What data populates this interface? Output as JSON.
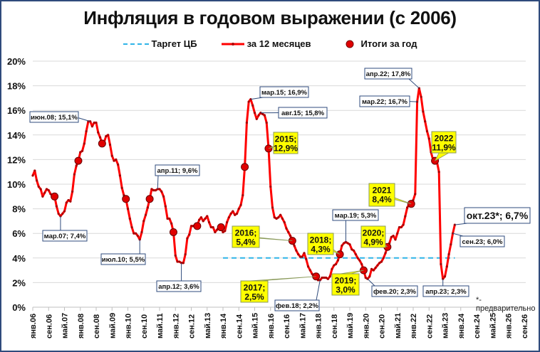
{
  "title": "Инфляция в годовом выражении (с 2006)",
  "legend": {
    "target": "Таргет ЦБ",
    "monthly": "за 12 месяцев",
    "annual": "Итоги за год"
  },
  "note": "*-предварительно",
  "colors": {
    "line": "#ff0000",
    "dot": "#e00000",
    "target": "#2fb4e8",
    "grid": "#d9d9d9",
    "frame": "#2f4b7c",
    "callout_yellow": "#ffff00",
    "callout_border": "#2f4b7c"
  },
  "chart_data": {
    "type": "line",
    "title": "Инфляция в годовом выражении (с 2006)",
    "xlabel": "",
    "ylabel": "",
    "ylim": [
      0,
      20
    ],
    "yticks": [
      "0%",
      "2%",
      "4%",
      "6%",
      "8%",
      "10%",
      "12%",
      "14%",
      "16%",
      "18%",
      "20%"
    ],
    "xticks": [
      "янв.06",
      "сен.06",
      "май.07",
      "янв.08",
      "сен.08",
      "май.09",
      "янв.10",
      "сен.10",
      "май.11",
      "янв.12",
      "сен.12",
      "май.13",
      "янв.14",
      "сен.14",
      "май.15",
      "янв.16",
      "сен.16",
      "май.17",
      "янв.18",
      "сен.18",
      "май.19",
      "янв.20",
      "сен.20",
      "май.21",
      "янв.22",
      "сен.22",
      "май.23",
      "янв.24",
      "сен.24",
      "май.25",
      "янв.26",
      "сен.26"
    ],
    "grid": true,
    "legend_position": "top",
    "series": [
      {
        "name": "Таргет ЦБ",
        "style": "dashed",
        "start": "янв.14",
        "end": "окт.23",
        "value": 4.0
      },
      {
        "name": "за 12 месяцев",
        "start": "янв.06",
        "values": [
          10.7,
          11.1,
          10.3,
          9.8,
          9.6,
          9.0,
          9.3,
          9.6,
          9.5,
          9.2,
          9.1,
          9.0,
          8.2,
          7.6,
          7.4,
          7.6,
          7.8,
          8.5,
          8.7,
          8.6,
          9.4,
          10.8,
          11.5,
          11.9,
          12.6,
          12.7,
          13.3,
          14.3,
          15.1,
          15.1,
          14.7,
          15.0,
          15.0,
          14.2,
          13.8,
          13.3,
          13.4,
          13.9,
          14.0,
          13.2,
          12.3,
          11.9,
          12.0,
          11.6,
          10.7,
          9.7,
          9.1,
          8.8,
          8.0,
          7.2,
          6.5,
          6.0,
          6.0,
          5.8,
          5.5,
          6.1,
          7.0,
          7.5,
          8.1,
          8.8,
          9.6,
          9.5,
          9.5,
          9.6,
          9.6,
          9.4,
          9.0,
          8.2,
          7.2,
          7.2,
          6.8,
          6.1,
          4.2,
          3.7,
          3.7,
          3.6,
          3.6,
          4.3,
          5.6,
          5.9,
          6.6,
          6.6,
          6.5,
          6.6,
          7.1,
          7.3,
          7.0,
          7.2,
          7.4,
          6.9,
          6.5,
          6.5,
          6.1,
          6.3,
          6.5,
          6.5,
          6.1,
          6.2,
          6.9,
          7.3,
          7.6,
          7.8,
          7.5,
          7.6,
          8.0,
          8.3,
          9.1,
          11.4,
          15.0,
          16.7,
          16.9,
          16.4,
          15.8,
          15.3,
          15.6,
          15.8,
          15.7,
          15.6,
          15.0,
          12.9,
          9.8,
          8.1,
          7.3,
          7.2,
          7.3,
          7.5,
          7.2,
          6.9,
          6.4,
          6.1,
          5.8,
          5.4,
          5.0,
          4.6,
          4.3,
          4.1,
          4.1,
          4.4,
          3.9,
          3.3,
          3.0,
          2.7,
          2.5,
          2.5,
          2.2,
          2.2,
          2.4,
          2.4,
          2.4,
          2.3,
          2.5,
          3.1,
          3.4,
          3.5,
          3.8,
          4.3,
          5.0,
          5.2,
          5.3,
          5.2,
          5.1,
          4.7,
          4.6,
          4.3,
          4.0,
          3.8,
          3.5,
          3.0,
          2.4,
          2.3,
          2.5,
          3.1,
          3.0,
          3.2,
          3.4,
          3.6,
          3.7,
          4.0,
          4.4,
          4.9,
          5.2,
          5.7,
          5.8,
          5.5,
          6.0,
          6.5,
          6.5,
          6.7,
          7.4,
          8.1,
          8.4,
          8.4,
          8.7,
          9.2,
          16.7,
          17.8,
          17.1,
          15.9,
          15.1,
          14.3,
          13.7,
          12.6,
          12.0,
          11.9,
          11.8,
          11.0,
          3.5,
          2.3,
          2.5,
          3.3,
          4.3,
          5.1,
          6.0,
          6.7
        ]
      },
      {
        "name": "Итоги за год",
        "type": "scatter",
        "points": [
          {
            "year": 2006,
            "month": "дек.06",
            "value": 9.0
          },
          {
            "year": 2007,
            "month": "дек.07",
            "value": 11.9
          },
          {
            "year": 2008,
            "month": "дек.08",
            "value": 13.3
          },
          {
            "year": 2009,
            "month": "дек.09",
            "value": 8.8
          },
          {
            "year": 2010,
            "month": "дек.10",
            "value": 8.8
          },
          {
            "year": 2011,
            "month": "дек.11",
            "value": 6.1
          },
          {
            "year": 2012,
            "month": "дек.12",
            "value": 6.6
          },
          {
            "year": 2013,
            "month": "дек.13",
            "value": 6.5
          },
          {
            "year": 2014,
            "month": "дек.14",
            "value": 11.4
          },
          {
            "year": 2015,
            "month": "дек.15",
            "value": 12.9
          },
          {
            "year": 2016,
            "month": "дек.16",
            "value": 5.4
          },
          {
            "year": 2017,
            "month": "дек.17",
            "value": 2.5
          },
          {
            "year": 2018,
            "month": "дек.18",
            "value": 4.3
          },
          {
            "year": 2019,
            "month": "дек.19",
            "value": 3.0
          },
          {
            "year": 2020,
            "month": "дек.20",
            "value": 4.9
          },
          {
            "year": 2021,
            "month": "дек.21",
            "value": 8.4
          },
          {
            "year": 2022,
            "month": "дек.22",
            "value": 11.9
          }
        ]
      }
    ],
    "annotations": [
      {
        "text": "июн.08; 15,1%",
        "style": "white"
      },
      {
        "text": "мар.07; 7,4%",
        "style": "white"
      },
      {
        "text": "июл.10; 5,5%",
        "style": "white"
      },
      {
        "text": "апр.11; 9,6%",
        "style": "white"
      },
      {
        "text": "апр.12; 3,6%",
        "style": "white"
      },
      {
        "text": "мар.15; 16,9%",
        "style": "white"
      },
      {
        "text": "авг.15; 15,8%",
        "style": "white"
      },
      {
        "text": "фев.18; 2,2%",
        "style": "white"
      },
      {
        "text": "мар.19; 5,3%",
        "style": "white"
      },
      {
        "text": "фев.20; 2,3%",
        "style": "white"
      },
      {
        "text": "апр.22; 17,8%",
        "style": "white"
      },
      {
        "text": "мар.22; 16,7%",
        "style": "white"
      },
      {
        "text": "апр.23; 2,3%",
        "style": "white"
      },
      {
        "text": "сен.23; 6,0%",
        "style": "white"
      },
      {
        "text": "окт.23*; 6,7%",
        "style": "white-large"
      },
      {
        "text": [
          "2015;",
          "12,9%"
        ],
        "style": "yellow"
      },
      {
        "text": [
          "2016;",
          "5,4%"
        ],
        "style": "yellow"
      },
      {
        "text": [
          "2017;",
          "2,5%"
        ],
        "style": "yellow"
      },
      {
        "text": [
          "2018;",
          "4,3%"
        ],
        "style": "yellow"
      },
      {
        "text": [
          "2019;",
          "3,0%"
        ],
        "style": "yellow"
      },
      {
        "text": [
          "2020;",
          "4,9%"
        ],
        "style": "yellow"
      },
      {
        "text": [
          "2021",
          "8,4%"
        ],
        "style": "yellow"
      },
      {
        "text": [
          "2022",
          "11,9%"
        ],
        "style": "yellow"
      }
    ]
  }
}
